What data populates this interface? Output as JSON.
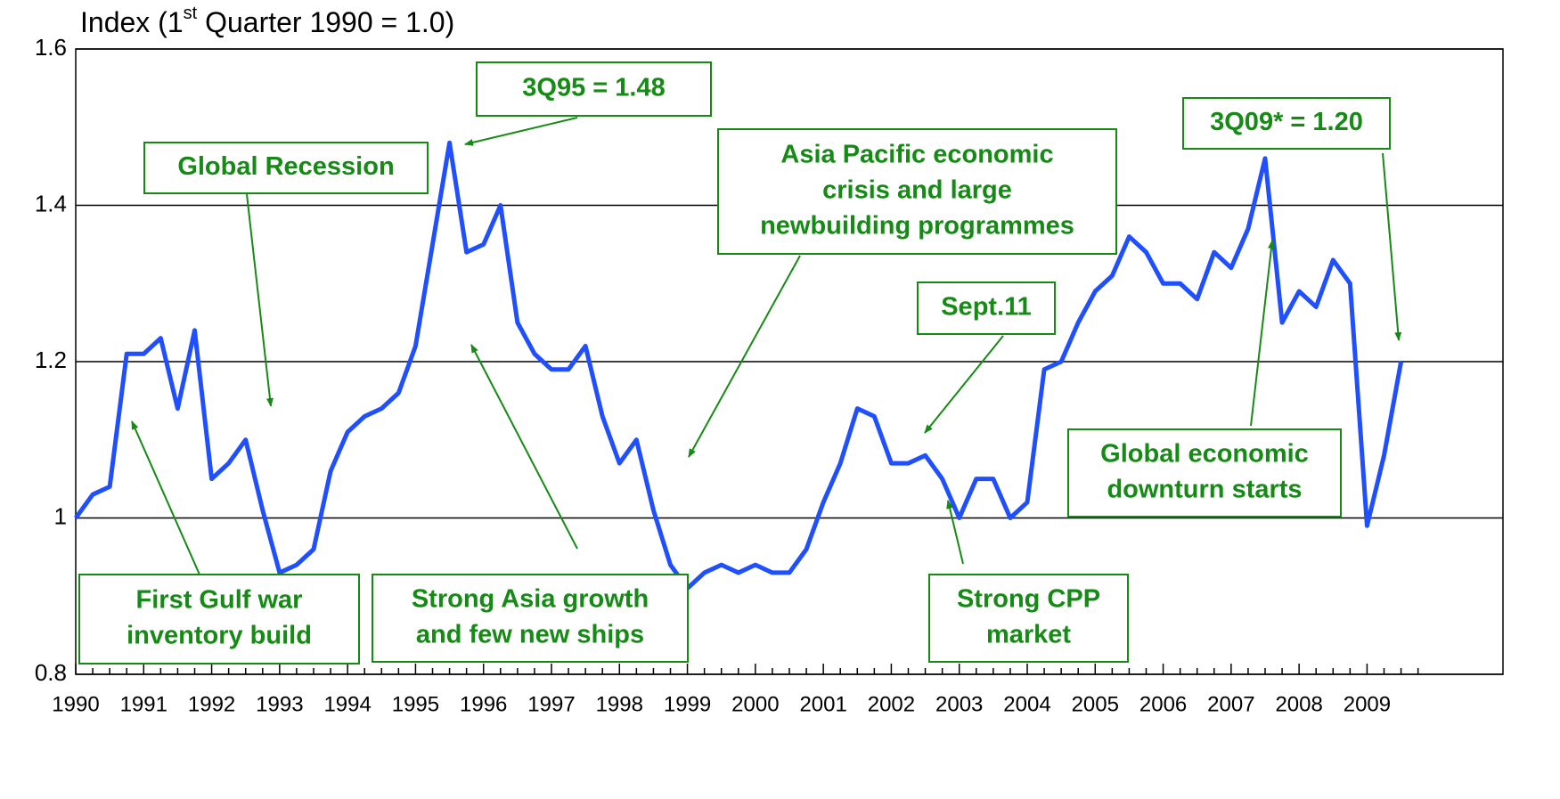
{
  "chart_data": {
    "type": "line",
    "title": [
      "Index  (1",
      "st",
      " Quarter 1990 = 1.0)"
    ],
    "x": [
      1990,
      1990.25,
      1990.5,
      1990.75,
      1991,
      1991.25,
      1991.5,
      1991.75,
      1992,
      1992.25,
      1992.5,
      1992.75,
      1993,
      1993.25,
      1993.5,
      1993.75,
      1994,
      1994.25,
      1994.5,
      1994.75,
      1995,
      1995.25,
      1995.5,
      1995.75,
      1996,
      1996.25,
      1996.5,
      1996.75,
      1997,
      1997.25,
      1997.5,
      1997.75,
      1998,
      1998.25,
      1998.5,
      1998.75,
      1999,
      1999.25,
      1999.5,
      1999.75,
      2000,
      2000.25,
      2000.5,
      2000.75,
      2001,
      2001.25,
      2001.5,
      2001.75,
      2002,
      2002.25,
      2002.5,
      2002.75,
      2003,
      2003.25,
      2003.5,
      2003.75,
      2004,
      2004.25,
      2004.5,
      2004.75,
      2005,
      2005.25,
      2005.5,
      2005.75,
      2006,
      2006.25,
      2006.5,
      2006.75,
      2007,
      2007.25,
      2007.5,
      2007.75,
      2008,
      2008.25,
      2008.5,
      2008.75,
      2009,
      2009.25,
      2009.5
    ],
    "values": [
      1.0,
      1.03,
      1.04,
      1.21,
      1.21,
      1.23,
      1.14,
      1.24,
      1.05,
      1.07,
      1.1,
      1.01,
      0.93,
      0.94,
      0.96,
      1.06,
      1.11,
      1.13,
      1.14,
      1.16,
      1.22,
      1.35,
      1.48,
      1.34,
      1.35,
      1.4,
      1.25,
      1.21,
      1.19,
      1.19,
      1.22,
      1.13,
      1.07,
      1.1,
      1.01,
      0.94,
      0.91,
      0.93,
      0.94,
      0.93,
      0.94,
      0.93,
      0.93,
      0.96,
      1.02,
      1.07,
      1.14,
      1.13,
      1.07,
      1.07,
      1.08,
      1.05,
      1.0,
      1.05,
      1.05,
      1.0,
      1.02,
      1.19,
      1.2,
      1.25,
      1.29,
      1.31,
      1.36,
      1.34,
      1.3,
      1.3,
      1.28,
      1.34,
      1.32,
      1.37,
      1.46,
      1.25,
      1.29,
      1.27,
      1.33,
      1.3,
      0.99,
      1.08,
      1.2
    ],
    "color": "#1f4fff",
    "xlim": [
      1990,
      2011
    ],
    "xticks": [
      1990,
      1991,
      1992,
      1993,
      1994,
      1995,
      1996,
      1997,
      1998,
      1999,
      2000,
      2001,
      2002,
      2003,
      2004,
      2005,
      2006,
      2007,
      2008,
      2009
    ],
    "ylim": [
      0.8,
      1.6
    ],
    "yticks": [
      0.8,
      1,
      1.2,
      1.4,
      1.6
    ],
    "grid": true,
    "annotations": [
      {
        "text": [
          "3Q95 = 1.48"
        ]
      },
      {
        "text": [
          "Global Recession"
        ]
      },
      {
        "text": [
          "Asia Pacific economic",
          "crisis and large",
          "newbuilding programmes"
        ]
      },
      {
        "text": [
          "Sept.11"
        ]
      },
      {
        "text": [
          "3Q09* = 1.20"
        ]
      },
      {
        "text": [
          "Global economic",
          "downturn starts"
        ]
      },
      {
        "text": [
          "First Gulf war",
          "inventory build"
        ]
      },
      {
        "text": [
          "Strong Asia growth",
          "and few new ships"
        ]
      },
      {
        "text": [
          "Strong CPP",
          "market"
        ]
      }
    ]
  }
}
